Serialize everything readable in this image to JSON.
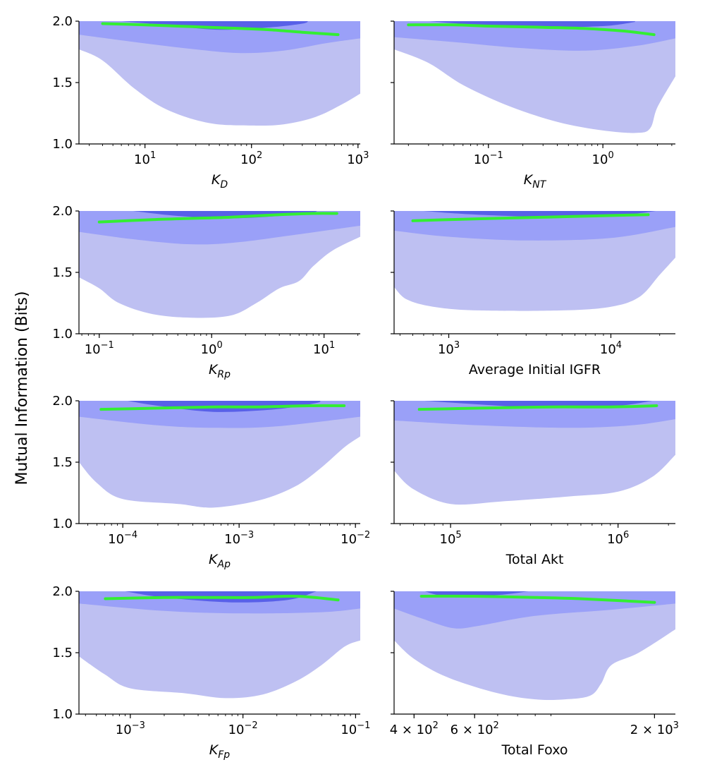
{
  "figure": {
    "ylabel": "Mutual Information (Bits)",
    "colors": {
      "band_outer": "#bec0f2",
      "band_mid": "#9aa0f8",
      "band_inner": "#5860e8",
      "median_line": "#33ee33",
      "axis": "#000000"
    }
  },
  "chart_data": [
    {
      "type": "area",
      "scale_x": "log",
      "xlabel": "K_D",
      "xlabel_main": "K",
      "xlabel_sub": "D",
      "xlim": [
        2.4,
        1050
      ],
      "ylim": [
        1.0,
        2.0
      ],
      "yticks": [
        {
          "v": 1.0,
          "label": "1.0"
        },
        {
          "v": 1.5,
          "label": "1.5"
        },
        {
          "v": 2.0,
          "label": "2.0"
        }
      ],
      "xticks": [
        {
          "v": 10,
          "base": "10",
          "exp": "1"
        },
        {
          "v": 100,
          "base": "10",
          "exp": "2"
        },
        {
          "v": 1000,
          "base": "10",
          "exp": "3"
        }
      ],
      "show_ytick_labels": true,
      "band_outer_lower": [
        [
          2.4,
          1.77
        ],
        [
          4,
          1.68
        ],
        [
          8,
          1.45
        ],
        [
          16,
          1.28
        ],
        [
          40,
          1.17
        ],
        [
          100,
          1.15
        ],
        [
          200,
          1.16
        ],
        [
          400,
          1.22
        ],
        [
          700,
          1.32
        ],
        [
          1050,
          1.41
        ]
      ],
      "band_mid_lower": [
        [
          2.4,
          1.89
        ],
        [
          8,
          1.83
        ],
        [
          30,
          1.77
        ],
        [
          80,
          1.74
        ],
        [
          200,
          1.76
        ],
        [
          500,
          1.82
        ],
        [
          1050,
          1.86
        ]
      ],
      "band_inner": [
        [
          6,
          2.0
        ],
        [
          15,
          1.97
        ],
        [
          50,
          1.93
        ],
        [
          150,
          1.95
        ],
        [
          300,
          1.98
        ],
        [
          340,
          2.0
        ]
      ],
      "median": [
        [
          4,
          1.98
        ],
        [
          10,
          1.97
        ],
        [
          20,
          1.96
        ],
        [
          40,
          1.95
        ],
        [
          80,
          1.94
        ],
        [
          150,
          1.93
        ],
        [
          300,
          1.91
        ],
        [
          650,
          1.89
        ]
      ]
    },
    {
      "type": "area",
      "scale_x": "log",
      "xlabel": "K_NT",
      "xlabel_main": "K",
      "xlabel_sub": "NT",
      "xlim": [
        0.015,
        4.3
      ],
      "ylim": [
        1.0,
        2.0
      ],
      "yticks": [
        {
          "v": 1.0,
          "label": "1.0"
        },
        {
          "v": 1.5,
          "label": "1.5"
        },
        {
          "v": 2.0,
          "label": "2.0"
        }
      ],
      "xticks": [
        {
          "v": 0.1,
          "base": "10",
          "exp": "−1"
        },
        {
          "v": 1,
          "base": "10",
          "exp": "0"
        }
      ],
      "show_ytick_labels": false,
      "band_outer_lower": [
        [
          0.015,
          1.77
        ],
        [
          0.03,
          1.66
        ],
        [
          0.06,
          1.48
        ],
        [
          0.15,
          1.31
        ],
        [
          0.4,
          1.18
        ],
        [
          1,
          1.11
        ],
        [
          2,
          1.09
        ],
        [
          2.6,
          1.13
        ],
        [
          3,
          1.3
        ],
        [
          4.3,
          1.55
        ]
      ],
      "band_mid_lower": [
        [
          0.015,
          1.87
        ],
        [
          0.05,
          1.83
        ],
        [
          0.2,
          1.78
        ],
        [
          0.7,
          1.76
        ],
        [
          2,
          1.8
        ],
        [
          4.3,
          1.86
        ]
      ],
      "band_inner": [
        [
          0.03,
          2.0
        ],
        [
          0.08,
          1.97
        ],
        [
          0.3,
          1.95
        ],
        [
          1,
          1.96
        ],
        [
          1.8,
          1.99
        ],
        [
          1.9,
          2.0
        ]
      ],
      "median": [
        [
          0.02,
          1.97
        ],
        [
          0.05,
          1.97
        ],
        [
          0.1,
          1.96
        ],
        [
          0.3,
          1.95
        ],
        [
          0.7,
          1.94
        ],
        [
          1.5,
          1.92
        ],
        [
          2.8,
          1.89
        ]
      ]
    },
    {
      "type": "area",
      "scale_x": "log",
      "xlabel": "K_Rp",
      "xlabel_main": "K",
      "xlabel_sub": "Rp",
      "xlim": [
        0.066,
        21
      ],
      "ylim": [
        1.0,
        2.0
      ],
      "yticks": [
        {
          "v": 1.0,
          "label": "1.0"
        },
        {
          "v": 1.5,
          "label": "1.5"
        },
        {
          "v": 2.0,
          "label": "2.0"
        }
      ],
      "xticks": [
        {
          "v": 0.1,
          "base": "10",
          "exp": "−1"
        },
        {
          "v": 1,
          "base": "10",
          "exp": "0"
        },
        {
          "v": 10,
          "base": "10",
          "exp": "1"
        }
      ],
      "show_ytick_labels": true,
      "band_outer_lower": [
        [
          0.066,
          1.46
        ],
        [
          0.1,
          1.37
        ],
        [
          0.15,
          1.25
        ],
        [
          0.3,
          1.16
        ],
        [
          0.7,
          1.13
        ],
        [
          1.5,
          1.15
        ],
        [
          2.5,
          1.25
        ],
        [
          4,
          1.37
        ],
        [
          6,
          1.43
        ],
        [
          8,
          1.55
        ],
        [
          12,
          1.68
        ],
        [
          21,
          1.79
        ]
      ],
      "band_mid_lower": [
        [
          0.066,
          1.83
        ],
        [
          0.2,
          1.77
        ],
        [
          0.6,
          1.73
        ],
        [
          1.5,
          1.74
        ],
        [
          5,
          1.8
        ],
        [
          21,
          1.88
        ]
      ],
      "band_inner": [
        [
          0.2,
          2.0
        ],
        [
          0.5,
          1.96
        ],
        [
          1.5,
          1.94
        ],
        [
          4,
          1.96
        ],
        [
          8,
          1.99
        ],
        [
          8.5,
          2.0
        ]
      ],
      "median": [
        [
          0.1,
          1.91
        ],
        [
          0.3,
          1.93
        ],
        [
          0.7,
          1.94
        ],
        [
          1.5,
          1.95
        ],
        [
          4,
          1.97
        ],
        [
          8,
          1.98
        ],
        [
          13,
          1.98
        ]
      ]
    },
    {
      "type": "area",
      "scale_x": "log",
      "xlabel": "Average Initial IGFR",
      "xlabel_main": "Average Initial IGFR",
      "xlabel_sub": "",
      "xlim": [
        460,
        25000
      ],
      "ylim": [
        1.0,
        2.0
      ],
      "yticks": [
        {
          "v": 1.0,
          "label": "1.0"
        },
        {
          "v": 1.5,
          "label": "1.5"
        },
        {
          "v": 2.0,
          "label": "2.0"
        }
      ],
      "xticks": [
        {
          "v": 1000,
          "base": "10",
          "exp": "3"
        },
        {
          "v": 10000,
          "base": "10",
          "exp": "4"
        }
      ],
      "show_ytick_labels": false,
      "band_outer_lower": [
        [
          460,
          1.38
        ],
        [
          550,
          1.28
        ],
        [
          800,
          1.22
        ],
        [
          1500,
          1.19
        ],
        [
          5000,
          1.19
        ],
        [
          10000,
          1.22
        ],
        [
          15000,
          1.3
        ],
        [
          20000,
          1.48
        ],
        [
          25000,
          1.62
        ]
      ],
      "band_mid_lower": [
        [
          460,
          1.84
        ],
        [
          1000,
          1.79
        ],
        [
          3000,
          1.76
        ],
        [
          10000,
          1.78
        ],
        [
          25000,
          1.87
        ]
      ],
      "band_inner": [
        [
          700,
          2.0
        ],
        [
          1500,
          1.97
        ],
        [
          5000,
          1.95
        ],
        [
          12000,
          1.97
        ],
        [
          19000,
          2.0
        ]
      ],
      "median": [
        [
          600,
          1.92
        ],
        [
          1000,
          1.93
        ],
        [
          2000,
          1.94
        ],
        [
          4000,
          1.95
        ],
        [
          8000,
          1.96
        ],
        [
          17000,
          1.97
        ]
      ]
    },
    {
      "type": "area",
      "scale_x": "log",
      "xlabel": "K_Ap",
      "xlabel_main": "K",
      "xlabel_sub": "Ap",
      "xlim": [
        4.2e-05,
        0.011
      ],
      "ylim": [
        1.0,
        2.0
      ],
      "yticks": [
        {
          "v": 1.0,
          "label": "1.0"
        },
        {
          "v": 1.5,
          "label": "1.5"
        },
        {
          "v": 2.0,
          "label": "2.0"
        }
      ],
      "xticks": [
        {
          "v": 0.0001,
          "base": "10",
          "exp": "−4"
        },
        {
          "v": 0.001,
          "base": "10",
          "exp": "−3"
        },
        {
          "v": 0.01,
          "base": "10",
          "exp": "−2"
        }
      ],
      "show_ytick_labels": true,
      "band_outer_lower": [
        [
          4.2e-05,
          1.5
        ],
        [
          6e-05,
          1.33
        ],
        [
          0.0001,
          1.2
        ],
        [
          0.0003,
          1.16
        ],
        [
          0.0006,
          1.13
        ],
        [
          0.0015,
          1.19
        ],
        [
          0.003,
          1.3
        ],
        [
          0.005,
          1.45
        ],
        [
          0.008,
          1.62
        ],
        [
          0.011,
          1.71
        ]
      ],
      "band_mid_lower": [
        [
          4.2e-05,
          1.87
        ],
        [
          0.0002,
          1.8
        ],
        [
          0.0006,
          1.78
        ],
        [
          0.002,
          1.79
        ],
        [
          0.011,
          1.87
        ]
      ],
      "band_inner": [
        [
          0.00011,
          2.0
        ],
        [
          0.0002,
          1.96
        ],
        [
          0.0006,
          1.91
        ],
        [
          0.002,
          1.93
        ],
        [
          0.0045,
          1.98
        ],
        [
          0.005,
          2.0
        ]
      ],
      "median": [
        [
          6.5e-05,
          1.93
        ],
        [
          0.0002,
          1.94
        ],
        [
          0.0006,
          1.95
        ],
        [
          0.0015,
          1.95
        ],
        [
          0.004,
          1.96
        ],
        [
          0.008,
          1.96
        ]
      ]
    },
    {
      "type": "area",
      "scale_x": "log",
      "xlabel": "Total Akt",
      "xlabel_main": "Total Akt",
      "xlabel_sub": "",
      "xlim": [
        46000,
        2200000
      ],
      "ylim": [
        1.0,
        2.0
      ],
      "yticks": [
        {
          "v": 1.0,
          "label": "1.0"
        },
        {
          "v": 1.5,
          "label": "1.5"
        },
        {
          "v": 2.0,
          "label": "2.0"
        }
      ],
      "xticks": [
        {
          "v": 100000,
          "base": "10",
          "exp": "5"
        },
        {
          "v": 1000000,
          "base": "10",
          "exp": "6"
        }
      ],
      "show_ytick_labels": false,
      "band_outer_lower": [
        [
          46000,
          1.43
        ],
        [
          60000,
          1.28
        ],
        [
          100000,
          1.16
        ],
        [
          200000,
          1.18
        ],
        [
          500000,
          1.22
        ],
        [
          1000000,
          1.26
        ],
        [
          1600000,
          1.38
        ],
        [
          2200000,
          1.56
        ]
      ],
      "band_mid_lower": [
        [
          46000,
          1.84
        ],
        [
          150000,
          1.8
        ],
        [
          500000,
          1.78
        ],
        [
          1200000,
          1.8
        ],
        [
          2200000,
          1.85
        ]
      ],
      "band_inner": [
        [
          70000,
          2.0
        ],
        [
          150000,
          1.97
        ],
        [
          400000,
          1.94
        ],
        [
          1000000,
          1.96
        ],
        [
          1600000,
          2.0
        ]
      ],
      "median": [
        [
          65000,
          1.93
        ],
        [
          150000,
          1.94
        ],
        [
          400000,
          1.95
        ],
        [
          900000,
          1.95
        ],
        [
          1700000,
          1.96
        ]
      ]
    },
    {
      "type": "area",
      "scale_x": "log",
      "xlabel": "K_Fp",
      "xlabel_main": "K",
      "xlabel_sub": "Fp",
      "xlim": [
        0.00035,
        0.11
      ],
      "ylim": [
        1.0,
        2.0
      ],
      "yticks": [
        {
          "v": 1.0,
          "label": "1.0"
        },
        {
          "v": 1.5,
          "label": "1.5"
        },
        {
          "v": 2.0,
          "label": "2.0"
        }
      ],
      "xticks": [
        {
          "v": 0.001,
          "base": "10",
          "exp": "−3"
        },
        {
          "v": 0.01,
          "base": "10",
          "exp": "−2"
        },
        {
          "v": 0.1,
          "base": "10",
          "exp": "−1"
        }
      ],
      "show_ytick_labels": true,
      "band_outer_lower": [
        [
          0.00035,
          1.47
        ],
        [
          0.0006,
          1.32
        ],
        [
          0.001,
          1.21
        ],
        [
          0.003,
          1.17
        ],
        [
          0.007,
          1.13
        ],
        [
          0.015,
          1.16
        ],
        [
          0.03,
          1.27
        ],
        [
          0.05,
          1.4
        ],
        [
          0.08,
          1.55
        ],
        [
          0.11,
          1.6
        ]
      ],
      "band_mid_lower": [
        [
          0.00035,
          1.9
        ],
        [
          0.002,
          1.84
        ],
        [
          0.01,
          1.82
        ],
        [
          0.05,
          1.83
        ],
        [
          0.11,
          1.86
        ]
      ],
      "band_inner": [
        [
          0.0009,
          2.0
        ],
        [
          0.002,
          1.95
        ],
        [
          0.008,
          1.91
        ],
        [
          0.025,
          1.93
        ],
        [
          0.045,
          2.0
        ]
      ],
      "median": [
        [
          0.0006,
          1.94
        ],
        [
          0.002,
          1.95
        ],
        [
          0.005,
          1.95
        ],
        [
          0.012,
          1.95
        ],
        [
          0.03,
          1.96
        ],
        [
          0.07,
          1.93
        ]
      ]
    },
    {
      "type": "area",
      "scale_x": "log",
      "xlabel": "Total Foxo",
      "xlabel_main": "Total Foxo",
      "xlabel_sub": "",
      "xlim": [
        350,
        2300
      ],
      "ylim": [
        1.0,
        2.0
      ],
      "yticks": [
        {
          "v": 1.0,
          "label": "1.0"
        },
        {
          "v": 1.5,
          "label": "1.5"
        },
        {
          "v": 2.0,
          "label": "2.0"
        }
      ],
      "xticks": [
        {
          "v": 400,
          "base": "4 × 10",
          "exp": "2"
        },
        {
          "v": 600,
          "base": "6 × 10",
          "exp": "2"
        },
        {
          "v": 2000,
          "base": "2 × 10",
          "exp": "3"
        }
      ],
      "show_ytick_labels": false,
      "band_outer_lower": [
        [
          350,
          1.6
        ],
        [
          400,
          1.45
        ],
        [
          500,
          1.3
        ],
        [
          700,
          1.17
        ],
        [
          900,
          1.12
        ],
        [
          1100,
          1.12
        ],
        [
          1300,
          1.15
        ],
        [
          1400,
          1.25
        ],
        [
          1500,
          1.4
        ],
        [
          1800,
          1.5
        ],
        [
          2300,
          1.69
        ]
      ],
      "band_mid_lower": [
        [
          350,
          1.86
        ],
        [
          420,
          1.78
        ],
        [
          520,
          1.7
        ],
        [
          620,
          1.72
        ],
        [
          900,
          1.8
        ],
        [
          1500,
          1.85
        ],
        [
          2300,
          1.9
        ]
      ],
      "band_inner": [
        [
          430,
          2.0
        ],
        [
          500,
          1.96
        ],
        [
          700,
          1.97
        ],
        [
          860,
          2.0
        ]
      ],
      "median": [
        [
          420,
          1.96
        ],
        [
          600,
          1.96
        ],
        [
          900,
          1.95
        ],
        [
          1200,
          1.94
        ],
        [
          2000,
          1.91
        ]
      ]
    }
  ]
}
